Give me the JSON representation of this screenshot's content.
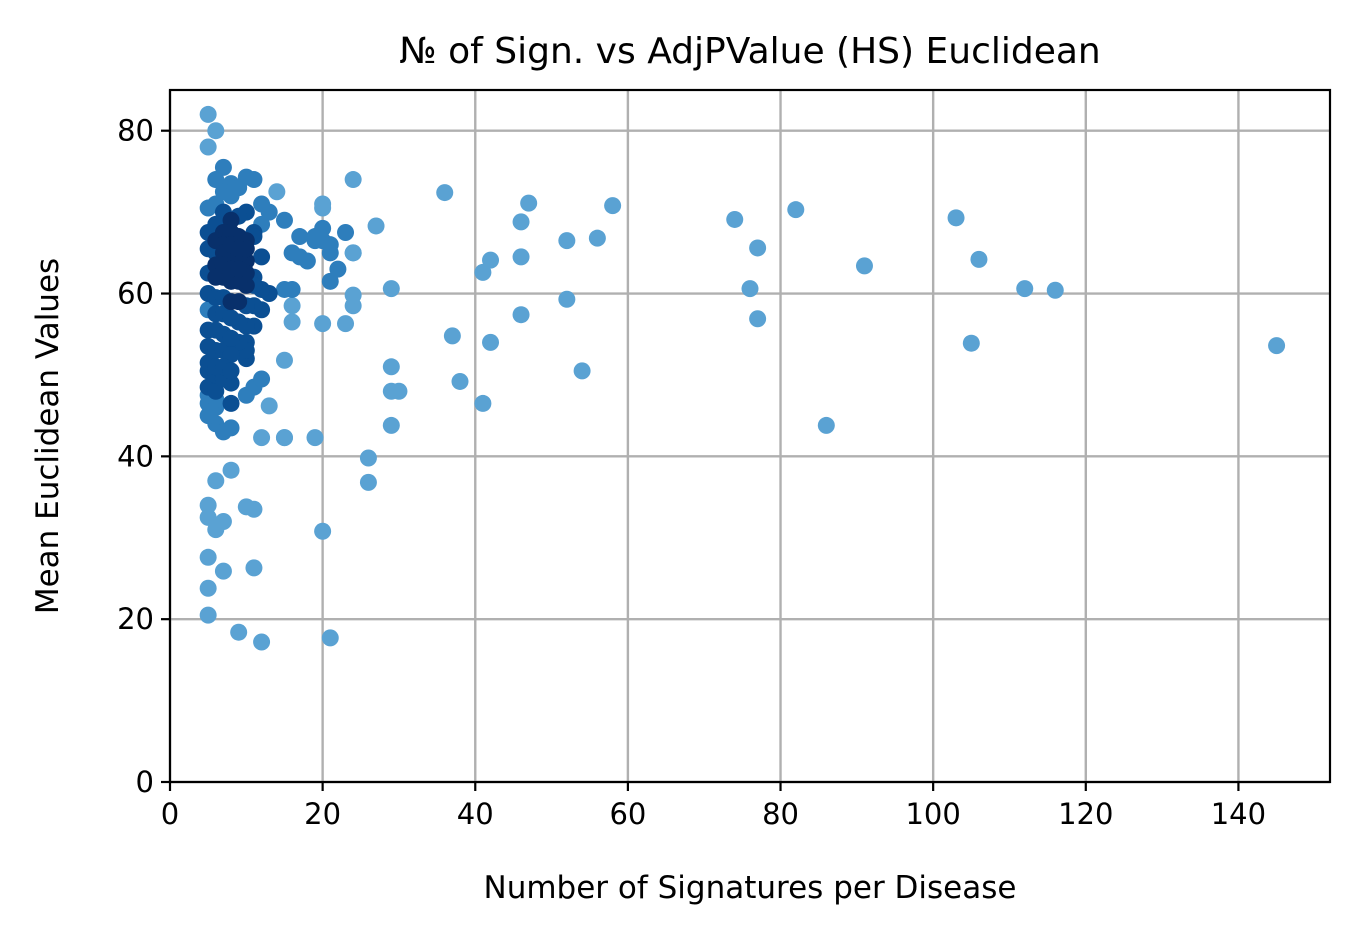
{
  "chart_data": {
    "type": "scatter",
    "title": "№ of Sign. vs AdjPValue (HS) Euclidean",
    "xlabel": "Number of Signatures per Disease",
    "ylabel": "Mean Euclidean Values",
    "xlim": [
      0,
      152
    ],
    "ylim": [
      0,
      85
    ],
    "xticks": [
      0,
      20,
      40,
      60,
      80,
      100,
      120,
      140
    ],
    "yticks": [
      0,
      20,
      40,
      60,
      80
    ],
    "grid": true,
    "colormap": [
      "#5aa2d3",
      "#2e7ebc",
      "#0b4f93",
      "#08306b"
    ],
    "x": [
      5,
      6,
      5,
      7,
      6,
      8,
      9,
      10,
      11,
      7,
      8,
      6,
      5,
      7,
      9,
      8,
      10,
      12,
      14,
      13,
      12,
      11,
      6,
      7,
      8,
      9,
      10,
      5,
      6,
      7,
      8,
      9,
      10,
      11,
      5,
      6,
      7,
      8,
      9,
      10,
      12,
      6,
      7,
      8,
      9,
      10,
      11,
      5,
      6,
      7,
      8,
      9,
      10,
      11,
      12,
      13,
      5,
      6,
      7,
      8,
      9,
      10,
      11,
      12,
      5,
      6,
      7,
      8,
      9,
      10,
      11,
      5,
      6,
      7,
      8,
      9,
      10,
      5,
      6,
      7,
      8,
      10,
      5,
      6,
      7,
      8,
      5,
      6,
      7,
      8,
      5,
      6,
      5,
      6,
      5,
      6,
      8,
      10,
      11,
      12,
      13,
      10,
      5,
      6,
      7,
      8,
      15,
      16,
      17,
      18,
      15,
      16,
      16,
      16,
      15,
      17,
      20,
      20,
      19,
      19,
      20,
      21,
      22,
      24,
      23,
      24,
      21,
      24,
      24,
      21,
      20,
      23,
      20,
      27,
      24,
      15,
      12,
      15,
      19,
      29,
      29,
      29,
      30,
      29,
      26,
      26,
      20,
      21,
      5,
      6,
      5,
      7,
      6,
      5,
      8,
      10,
      11,
      11,
      5,
      7,
      9,
      12,
      5,
      36,
      37,
      38,
      41,
      41,
      42,
      42,
      46,
      46,
      46,
      47,
      52,
      52,
      54,
      56,
      58,
      74,
      76,
      77,
      77,
      82,
      86,
      91,
      103,
      105,
      106,
      112,
      116,
      145
    ],
    "y": [
      82,
      80,
      78,
      75.5,
      74,
      73.5,
      73,
      74.3,
      74,
      72.5,
      72,
      71,
      70.5,
      70,
      69.5,
      69,
      70,
      71,
      72.5,
      70,
      68.5,
      67,
      68.5,
      67.5,
      67.5,
      67,
      66.5,
      67.5,
      66.5,
      66,
      66,
      65.5,
      65.5,
      67.5,
      65.5,
      65,
      65,
      64.5,
      64.5,
      64,
      64.5,
      63.5,
      63.5,
      63,
      63,
      62.5,
      62,
      62.5,
      62,
      62,
      61.5,
      61.5,
      61,
      61,
      60.5,
      60,
      60,
      59.5,
      59.5,
      59,
      59,
      58.5,
      58.5,
      58,
      58,
      57.5,
      57.5,
      57,
      56.5,
      56,
      56,
      55.5,
      55.5,
      55,
      54.5,
      54,
      54,
      53.5,
      53,
      53,
      52.5,
      52,
      51.5,
      51,
      51,
      50.5,
      50.5,
      50,
      49.5,
      49,
      48.5,
      48,
      47.5,
      47,
      46.5,
      46,
      46.5,
      47.5,
      48.5,
      49.5,
      46.2,
      53,
      45,
      44,
      43,
      43.5,
      69,
      65,
      64.5,
      64,
      60.5,
      60.5,
      58.5,
      56.5,
      51.8,
      67,
      68,
      66.5,
      67,
      66.5,
      71,
      65,
      63,
      65,
      67.5,
      58.5,
      61.5,
      59.8,
      74,
      66,
      70.5,
      56.3,
      56.3,
      68.3,
      65,
      42.3,
      42.3,
      42.3,
      42.3,
      60.6,
      51,
      48,
      48,
      43.8,
      39.8,
      36.8,
      30.8,
      17.7,
      34,
      37,
      32.5,
      32,
      31,
      27.6,
      38.3,
      33.8,
      33.5,
      26.3,
      23.8,
      25.9,
      18.4,
      17.2,
      20.5,
      72.4,
      54.8,
      49.2,
      62.6,
      46.5,
      64.1,
      54,
      68.8,
      64.5,
      57.4,
      71.1,
      66.5,
      59.3,
      50.5,
      66.8,
      70.8,
      69.1,
      60.6,
      65.6,
      56.9,
      70.3,
      43.8,
      63.4,
      69.3,
      53.9,
      64.2,
      60.6,
      60.4,
      53.6
    ]
  }
}
